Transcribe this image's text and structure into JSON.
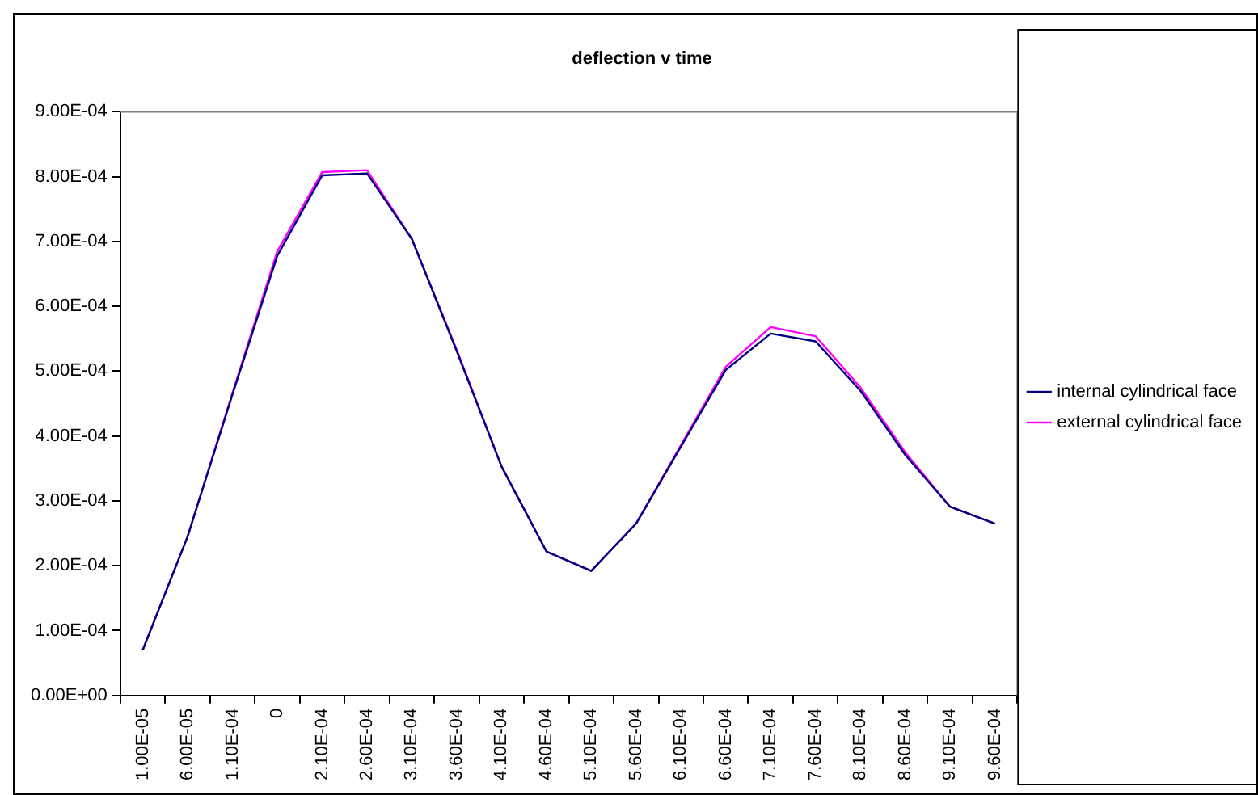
{
  "chart_data": {
    "type": "line",
    "title": "deflection v time",
    "categories": [
      "1.00E-05",
      "6.00E-05",
      "1.10E-04",
      "0",
      "2.10E-04",
      "2.60E-04",
      "3.10E-04",
      "3.60E-04",
      "4.10E-04",
      "4.60E-04",
      "5.10E-04",
      "5.60E-04",
      "6.10E-04",
      "6.60E-04",
      "7.10E-04",
      "7.60E-04",
      "8.10E-04",
      "8.60E-04",
      "9.10E-04",
      "9.60E-04"
    ],
    "series": [
      {
        "name": "internal cylindrical face",
        "color": "#000080",
        "values": [
          7e-05,
          0.000245,
          0.000464,
          0.000678,
          0.000802,
          0.000805,
          0.000704,
          0.000531,
          0.000353,
          0.000222,
          0.000192,
          0.000265,
          0.000384,
          0.000502,
          0.000558,
          0.000546,
          0.00047,
          0.000371,
          0.000291,
          0.000265
        ]
      },
      {
        "name": "external cylindrical face",
        "color": "#ff00ff",
        "values": [
          7e-05,
          0.000245,
          0.000466,
          0.000685,
          0.000807,
          0.00081,
          0.000704,
          0.000533,
          0.000353,
          0.000222,
          0.000192,
          0.000265,
          0.000386,
          0.000507,
          0.000568,
          0.000554,
          0.000475,
          0.000375,
          0.000291,
          0.000265
        ]
      }
    ],
    "ylim": [
      0,
      0.0009
    ],
    "yticks": [
      {
        "value": 0,
        "label": "0.00E+00"
      },
      {
        "value": 0.0001,
        "label": "1.00E-04"
      },
      {
        "value": 0.0002,
        "label": "2.00E-04"
      },
      {
        "value": 0.0003,
        "label": "3.00E-04"
      },
      {
        "value": 0.0004,
        "label": "4.00E-04"
      },
      {
        "value": 0.0005,
        "label": "5.00E-04"
      },
      {
        "value": 0.0006,
        "label": "6.00E-04"
      },
      {
        "value": 0.0007,
        "label": "7.00E-04"
      },
      {
        "value": 0.0008,
        "label": "8.00E-04"
      },
      {
        "value": 0.0009,
        "label": "9.00E-04"
      }
    ],
    "grid": false,
    "legend": "right",
    "marker": "none",
    "line_style": "solid"
  }
}
